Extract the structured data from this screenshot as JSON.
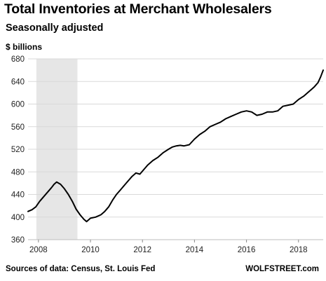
{
  "chart_data": {
    "type": "line",
    "title": "Total Inventories at Merchant Wholesalers",
    "subtitle": "Seasonally adjusted",
    "ylabel": "$ billions",
    "ylim": [
      360,
      680
    ],
    "xlim": [
      2007.6,
      2018.95
    ],
    "yticks": [
      360,
      400,
      440,
      480,
      520,
      560,
      600,
      640,
      680
    ],
    "xticks": [
      2008,
      2010,
      2012,
      2014,
      2016,
      2018
    ],
    "grid": "horizontal",
    "recession_band": [
      2007.92,
      2009.5
    ],
    "series": [
      {
        "color": "#000000",
        "x": [
          2007.6,
          2007.75,
          2007.9,
          2008.05,
          2008.2,
          2008.35,
          2008.5,
          2008.6,
          2008.7,
          2008.85,
          2009.0,
          2009.15,
          2009.3,
          2009.45,
          2009.6,
          2009.75,
          2009.85,
          2010.0,
          2010.2,
          2010.4,
          2010.55,
          2010.7,
          2010.85,
          2011.0,
          2011.15,
          2011.3,
          2011.45,
          2011.6,
          2011.75,
          2011.9,
          2012.05,
          2012.2,
          2012.4,
          2012.6,
          2012.8,
          2013.0,
          2013.15,
          2013.3,
          2013.45,
          2013.6,
          2013.8,
          2014.0,
          2014.2,
          2014.4,
          2014.6,
          2014.8,
          2015.0,
          2015.2,
          2015.4,
          2015.6,
          2015.8,
          2016.0,
          2016.2,
          2016.4,
          2016.6,
          2016.8,
          2017.0,
          2017.2,
          2017.4,
          2017.6,
          2017.8,
          2018.0,
          2018.2,
          2018.4,
          2018.6,
          2018.75,
          2018.85,
          2018.95
        ],
        "y": [
          410,
          413,
          418,
          428,
          436,
          444,
          452,
          458,
          462,
          458,
          450,
          440,
          428,
          414,
          404,
          396,
          392,
          398,
          400,
          404,
          410,
          418,
          430,
          440,
          448,
          456,
          464,
          472,
          478,
          476,
          484,
          492,
          500,
          506,
          514,
          520,
          524,
          526,
          527,
          526,
          528,
          538,
          546,
          552,
          560,
          564,
          568,
          574,
          578,
          582,
          586,
          588,
          586,
          580,
          582,
          586,
          586,
          588,
          596,
          598,
          600,
          608,
          614,
          622,
          630,
          638,
          648,
          660
        ]
      }
    ]
  },
  "footer": {
    "source": "Sources of data: Census, St. Louis Fed",
    "brand": "WOLFSTREET.com"
  }
}
